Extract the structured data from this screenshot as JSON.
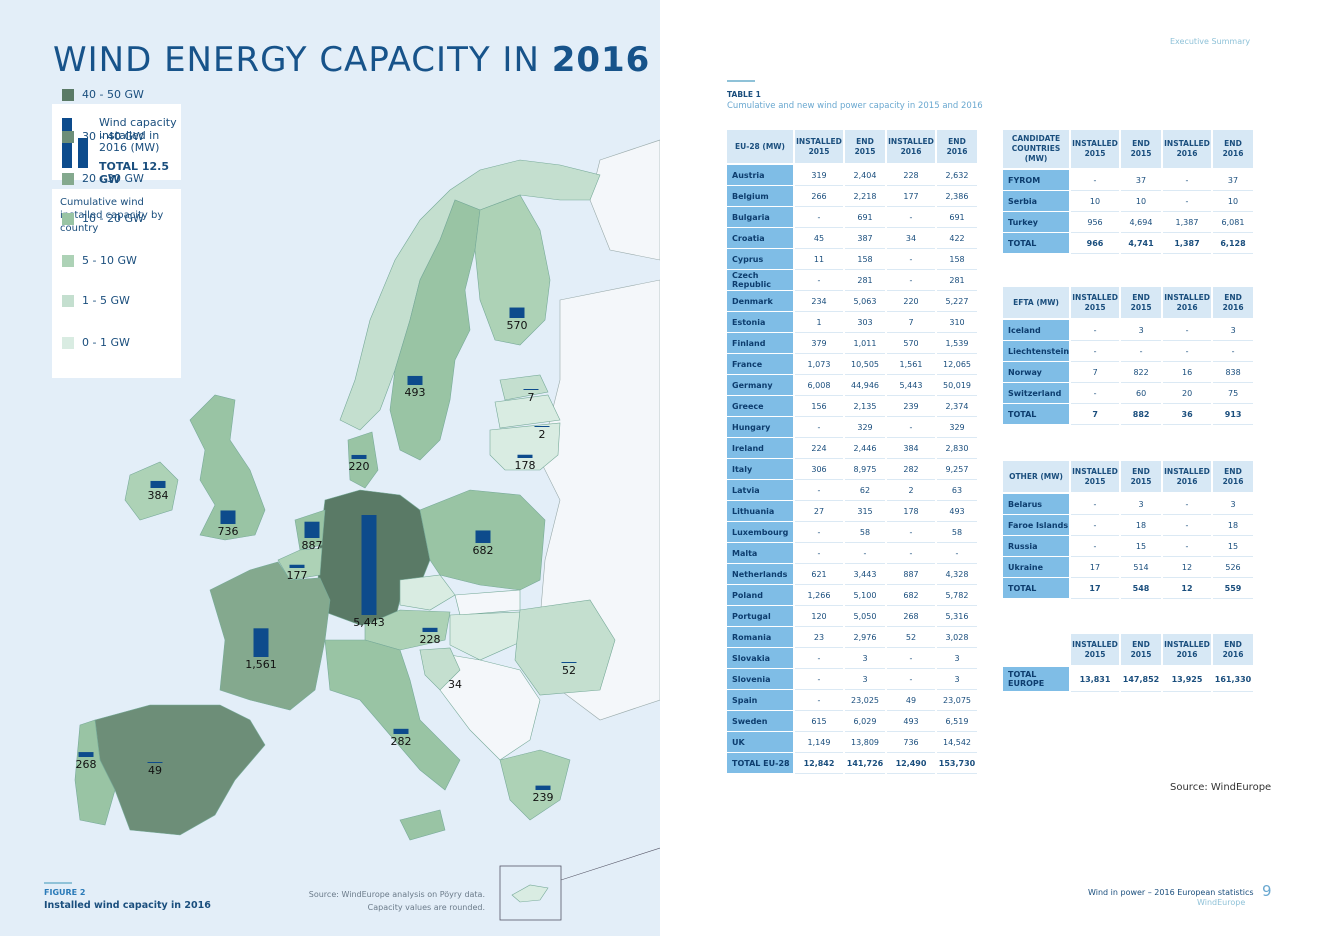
{
  "page": {
    "title_normal": "WIND ENERGY CAPACITY IN",
    "title_bold": "2016",
    "header_right": "Executive Summary",
    "footer_title": "Wind in power – 2016 European statistics",
    "footer_org": "WindEurope",
    "page_number": "9"
  },
  "legend": {
    "wind_label": "Wind capacity installed in 2016 (MW)",
    "total": "TOTAL 12.5 GW",
    "cumulative_title": "Cumulative wind installed capacity by country",
    "items": [
      {
        "label": "40 - 50 GW",
        "color": "#5a7a66"
      },
      {
        "label": "30 - 40 GW",
        "color": "#6d8e78"
      },
      {
        "label": "20 - 30 GW",
        "color": "#84a98e"
      },
      {
        "label": "10 - 20 GW",
        "color": "#99c4a4"
      },
      {
        "label": "5 - 10 GW",
        "color": "#add2b6"
      },
      {
        "label": "1 - 5 GW",
        "color": "#c4dfcf"
      },
      {
        "label": "0 - 1 GW",
        "color": "#d9ece2"
      }
    ]
  },
  "map_labels": [
    "5,443",
    "1,561",
    "887",
    "736",
    "682",
    "570",
    "493",
    "384",
    "282",
    "268",
    "239",
    "228",
    "220",
    "178",
    "177",
    "52",
    "49",
    "34",
    "7",
    "2"
  ],
  "map_bar_values": {
    "Germany": 5443,
    "France": 1561,
    "Netherlands": 887,
    "UK": 736,
    "Poland": 682,
    "Finland": 570,
    "Sweden": 493,
    "Ireland": 384,
    "Italy": 282,
    "Portugal": 268,
    "Greece": 239,
    "Austria": 228,
    "Denmark": 220,
    "Lithuania": 178,
    "Belgium": 177,
    "Romania": 52,
    "Spain": 49,
    "Croatia": 34,
    "Estonia": 7,
    "Latvia": 2
  },
  "figure": {
    "label": "FIGURE 2",
    "caption": "Installed wind capacity in 2016",
    "source_line1": "Source: WindEurope analysis on Pöyry data.",
    "source_line2": "Capacity values are rounded."
  },
  "table_header": {
    "label": "TABLE 1",
    "subtitle": "Cumulative and new wind power capacity in 2015 and 2016"
  },
  "col_headers": [
    "INSTALLED 2015",
    "END 2015",
    "INSTALLED 2016",
    "END 2016"
  ],
  "eu_table": {
    "head": "EU-28 (MW)",
    "rows": [
      [
        "Austria",
        "319",
        "2,404",
        "228",
        "2,632"
      ],
      [
        "Belgium",
        "266",
        "2,218",
        "177",
        "2,386"
      ],
      [
        "Bulgaria",
        "-",
        "691",
        "-",
        "691"
      ],
      [
        "Croatia",
        "45",
        "387",
        "34",
        "422"
      ],
      [
        "Cyprus",
        "11",
        "158",
        "-",
        "158"
      ],
      [
        "Czech Republic",
        "-",
        "281",
        "-",
        "281"
      ],
      [
        "Denmark",
        "234",
        "5,063",
        "220",
        "5,227"
      ],
      [
        "Estonia",
        "1",
        "303",
        "7",
        "310"
      ],
      [
        "Finland",
        "379",
        "1,011",
        "570",
        "1,539"
      ],
      [
        "France",
        "1,073",
        "10,505",
        "1,561",
        "12,065"
      ],
      [
        "Germany",
        "6,008",
        "44,946",
        "5,443",
        "50,019"
      ],
      [
        "Greece",
        "156",
        "2,135",
        "239",
        "2,374"
      ],
      [
        "Hungary",
        "-",
        "329",
        "-",
        "329"
      ],
      [
        "Ireland",
        "224",
        "2,446",
        "384",
        "2,830"
      ],
      [
        "Italy",
        "306",
        "8,975",
        "282",
        "9,257"
      ],
      [
        "Latvia",
        "-",
        "62",
        "2",
        "63"
      ],
      [
        "Lithuania",
        "27",
        "315",
        "178",
        "493"
      ],
      [
        "Luxembourg",
        "-",
        "58",
        "-",
        "58"
      ],
      [
        "Malta",
        "-",
        "-",
        "-",
        "-"
      ],
      [
        "Netherlands",
        "621",
        "3,443",
        "887",
        "4,328"
      ],
      [
        "Poland",
        "1,266",
        "5,100",
        "682",
        "5,782"
      ],
      [
        "Portugal",
        "120",
        "5,050",
        "268",
        "5,316"
      ],
      [
        "Romania",
        "23",
        "2,976",
        "52",
        "3,028"
      ],
      [
        "Slovakia",
        "-",
        "3",
        "-",
        "3"
      ],
      [
        "Slovenia",
        "-",
        "3",
        "-",
        "3"
      ],
      [
        "Spain",
        "-",
        "23,025",
        "49",
        "23,075"
      ],
      [
        "Sweden",
        "615",
        "6,029",
        "493",
        "6,519"
      ],
      [
        "UK",
        "1,149",
        "13,809",
        "736",
        "14,542"
      ]
    ],
    "total": [
      "TOTAL EU-28",
      "12,842",
      "141,726",
      "12,490",
      "153,730"
    ]
  },
  "candidate_table": {
    "head": "CANDIDATE COUNTRIES (MW)",
    "rows": [
      [
        "FYROM",
        "-",
        "37",
        "-",
        "37"
      ],
      [
        "Serbia",
        "10",
        "10",
        "-",
        "10"
      ],
      [
        "Turkey",
        "956",
        "4,694",
        "1,387",
        "6,081"
      ]
    ],
    "total": [
      "TOTAL",
      "966",
      "4,741",
      "1,387",
      "6,128"
    ]
  },
  "efta_table": {
    "head": "EFTA (MW)",
    "rows": [
      [
        "Iceland",
        "-",
        "3",
        "-",
        "3"
      ],
      [
        "Liechtenstein",
        "-",
        "-",
        "-",
        "-"
      ],
      [
        "Norway",
        "7",
        "822",
        "16",
        "838"
      ],
      [
        "Switzerland",
        "-",
        "60",
        "20",
        "75"
      ]
    ],
    "total": [
      "TOTAL",
      "7",
      "882",
      "36",
      "913"
    ]
  },
  "other_table": {
    "head": "OTHER (MW)",
    "rows": [
      [
        "Belarus",
        "-",
        "3",
        "-",
        "3"
      ],
      [
        "Faroe Islands",
        "-",
        "18",
        "-",
        "18"
      ],
      [
        "Russia",
        "-",
        "15",
        "-",
        "15"
      ],
      [
        "Ukraine",
        "17",
        "514",
        "12",
        "526"
      ]
    ],
    "total": [
      "TOTAL",
      "17",
      "548",
      "12",
      "559"
    ]
  },
  "europe_total": [
    "TOTAL EUROPE",
    "13,831",
    "147,852",
    "13,925",
    "161,330"
  ],
  "source_right": "Source: WindEurope"
}
